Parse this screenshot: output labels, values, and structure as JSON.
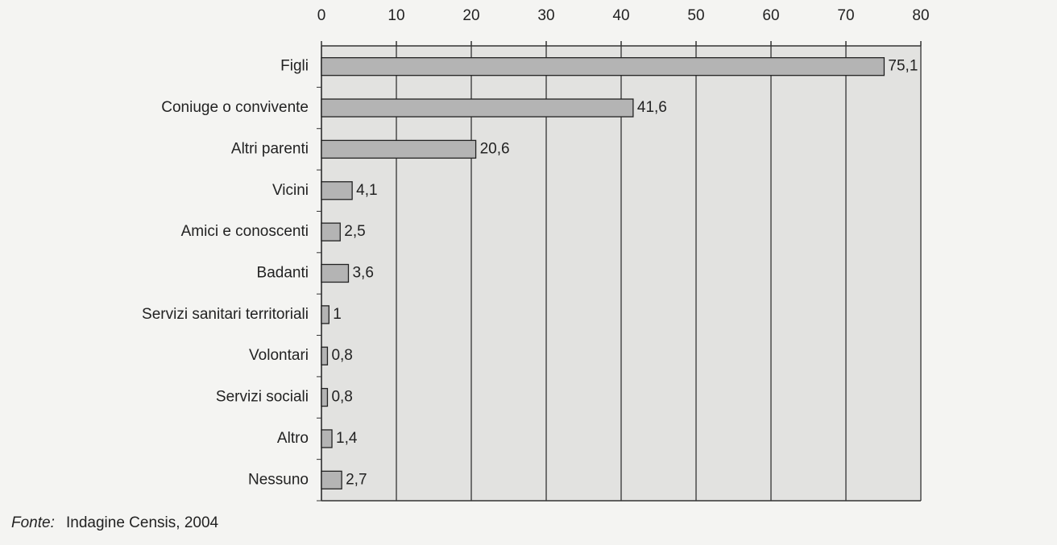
{
  "chart_data": {
    "type": "bar",
    "orientation": "horizontal",
    "categories": [
      "Figli",
      "Coniuge o convivente",
      "Altri parenti",
      "Vicini",
      "Amici e conoscenti",
      "Badanti",
      "Servizi sanitari territoriali",
      "Volontari",
      "Servizi sociali",
      "Altro",
      "Nessuno"
    ],
    "values": [
      75.1,
      41.6,
      20.6,
      4.1,
      2.5,
      3.6,
      1,
      0.8,
      0.8,
      1.4,
      2.7
    ],
    "value_labels": [
      "75,1",
      "41,6",
      "20,6",
      "4,1",
      "2,5",
      "3,6",
      "1",
      "0,8",
      "0,8",
      "1,4",
      "2,7"
    ],
    "color": "#b4b4b4",
    "xlim": [
      0,
      80
    ],
    "xticks": [
      0,
      10,
      20,
      30,
      40,
      50,
      60,
      70,
      80
    ],
    "grid": true,
    "source_label": "Fonte:",
    "source": "Indagine Censis, 2004"
  }
}
